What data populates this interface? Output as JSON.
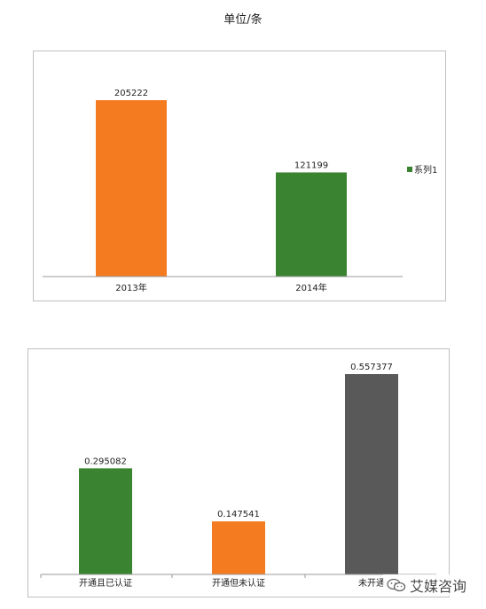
{
  "page": {
    "title": "单位/条",
    "watermark": "艾媒咨询"
  },
  "colors": {
    "orange": "#f47b20",
    "green": "#3a8431",
    "gray": "#595959",
    "axis": "#9a9a9a"
  },
  "chart_data": [
    {
      "type": "bar",
      "categories": [
        "2013年",
        "2014年"
      ],
      "values": [
        205222,
        121199
      ],
      "bar_colors": [
        "#f47b20",
        "#3a8431"
      ],
      "data_labels": [
        "205222",
        "121199"
      ],
      "legend": {
        "entries": [
          "系列1"
        ],
        "color": "#3a8431",
        "placement": "right"
      },
      "ylim": [
        0,
        205222
      ],
      "grid": false
    },
    {
      "type": "bar",
      "categories": [
        "开通且已认证",
        "开通但未认证",
        "未开通"
      ],
      "values": [
        0.295082,
        0.147541,
        0.557377
      ],
      "bar_colors": [
        "#3a8431",
        "#f47b20",
        "#595959"
      ],
      "data_labels": [
        "0.295082",
        "0.147541",
        "0.557377"
      ],
      "ylim": [
        0,
        0.557377
      ],
      "grid": false
    }
  ]
}
